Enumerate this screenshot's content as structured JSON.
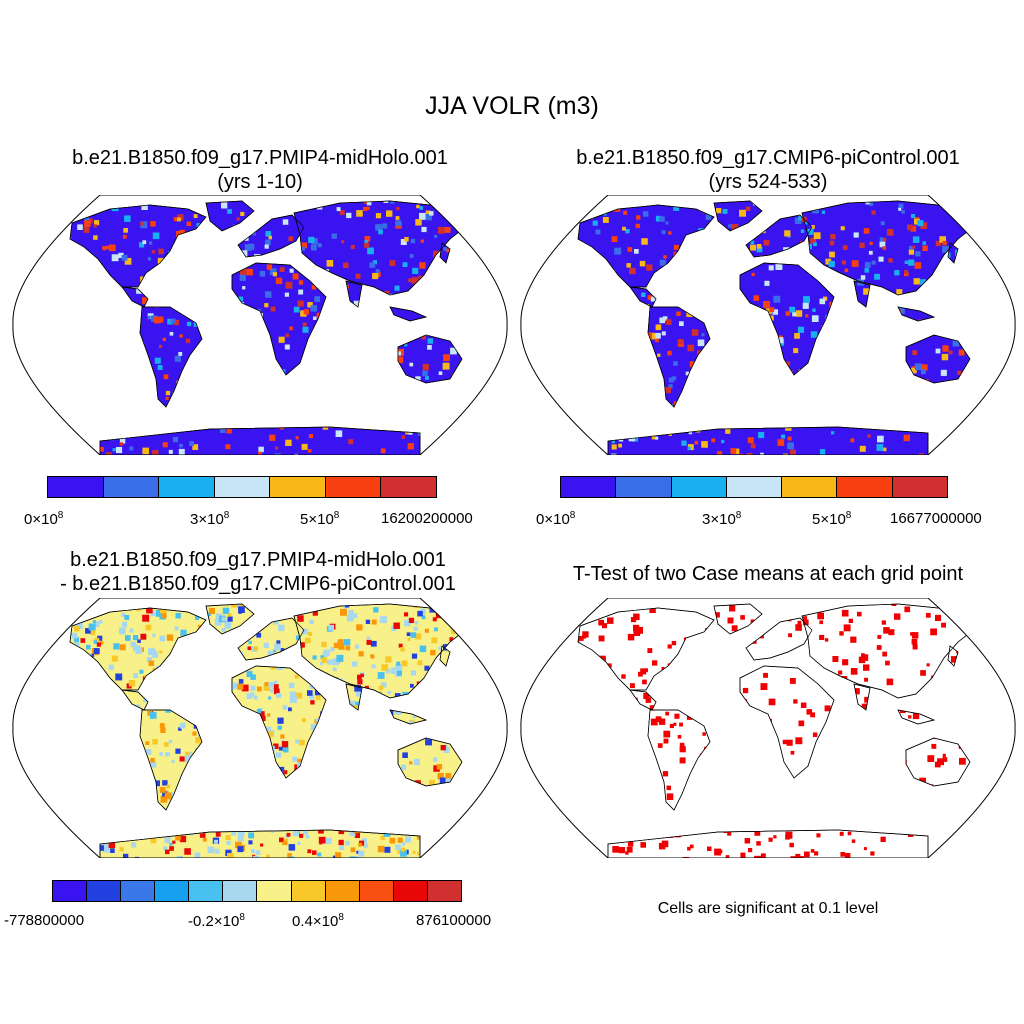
{
  "figure": {
    "title": "JJA VOLR (m3)"
  },
  "panels": {
    "top_left": {
      "title_line1": "b.e21.B1850.f09_g17.PMIP4-midHolo.001",
      "title_line2": "(yrs 1-10)",
      "colorbar": {
        "colors": [
          "#3a14f0",
          "#3a6ee8",
          "#18b0ee",
          "#c8e6f8",
          "#f8b818",
          "#f84010",
          "#d03030"
        ],
        "ticks": [
          {
            "mant": "0",
            "exp": "8"
          },
          {
            "mant": "3",
            "exp": "8"
          },
          {
            "mant": "5",
            "exp": "8"
          }
        ],
        "max_label": "16200200000"
      }
    },
    "top_right": {
      "title_line1": "b.e21.B1850.f09_g17.CMIP6-piControl.001",
      "title_line2": "(yrs 524-533)",
      "colorbar": {
        "colors": [
          "#3a14f0",
          "#3a6ee8",
          "#18b0ee",
          "#c8e6f8",
          "#f8b818",
          "#f84010",
          "#d03030"
        ],
        "ticks": [
          {
            "mant": "0",
            "exp": "8"
          },
          {
            "mant": "3",
            "exp": "8"
          },
          {
            "mant": "5",
            "exp": "8"
          }
        ],
        "max_label": "16677000000"
      }
    },
    "bottom_left": {
      "title_line1": "b.e21.B1850.f09_g17.PMIP4-midHolo.001",
      "title_line2": "- b.e21.B1850.f09_g17.CMIP6-piControl.001",
      "colorbar": {
        "colors": [
          "#3a14f0",
          "#2240e0",
          "#3a78e8",
          "#18a0f0",
          "#48c0f0",
          "#a8d8f0",
          "#f8f088",
          "#f8c828",
          "#f89808",
          "#f85010",
          "#e80808",
          "#d03030"
        ],
        "min_label": "-778800000",
        "ticks": [
          {
            "mant": "-0.2",
            "exp": "8"
          },
          {
            "mant": "0.4",
            "exp": "8"
          }
        ],
        "max_label": "876100000"
      }
    },
    "bottom_right": {
      "title": "T-Test of two Case means at each grid point",
      "note": "Cells are significant at 0.1 level"
    }
  },
  "colors": {
    "land_high": "#3a14f0",
    "hot": "#d03030",
    "significance": "#f00000",
    "diff_land": "#f8f088",
    "diff_neg": "#a8d8f0"
  }
}
